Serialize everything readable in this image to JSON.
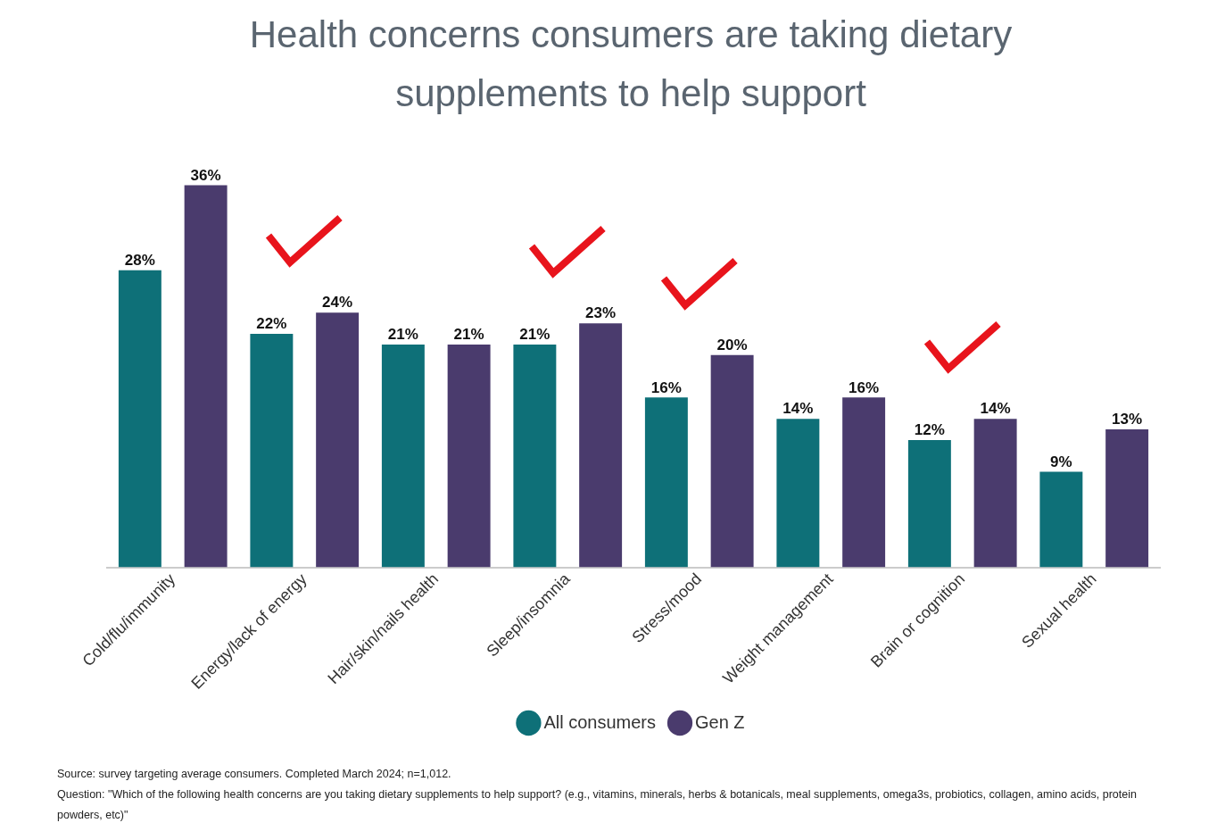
{
  "chart_data": {
    "type": "bar",
    "title": "Health concerns consumers are taking dietary supplements to help support",
    "categories": [
      "Cold/flu/immunity",
      "Energy/lack of energy",
      "Hair/skin/nails health",
      "Sleep/insomnia",
      "Stress/mood",
      "Weight management",
      "Brain or cognition",
      "Sexual health"
    ],
    "series": [
      {
        "name": "All consumers",
        "color": "#0e7078",
        "values": [
          28,
          22,
          21,
          21,
          16,
          14,
          12,
          9
        ],
        "value_labels": [
          "28%",
          "22%",
          "21%",
          "21%",
          "16%",
          "14%",
          "12%",
          "9%"
        ]
      },
      {
        "name": "Gen Z",
        "color": "#4a3b6d",
        "values": [
          36,
          24,
          21,
          23,
          20,
          16,
          14,
          13
        ],
        "value_labels": [
          "36%",
          "24%",
          "21%",
          "23%",
          "20%",
          "16%",
          "14%",
          "13%"
        ]
      }
    ],
    "grid": false,
    "legend": "bottom",
    "annotations": [
      "Source: survey targeting average consumers. Completed March 2024;  n=1,012.",
      "Question: \"Which of the following health concerns are you taking dietary supplements to help support? (e.g., vitamins, minerals, herbs & botanicals, meal supplements, omega3s, probiotics, collagen, amino acids, protein powders, etc)\""
    ]
  }
}
